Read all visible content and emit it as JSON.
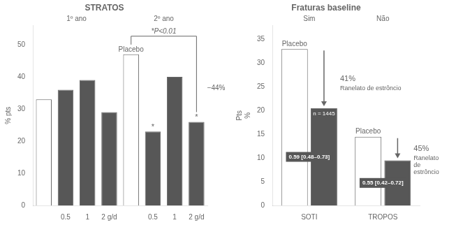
{
  "chart_data": [
    {
      "type": "bar",
      "title": "STRATOS",
      "ylabel": "% pts",
      "categories": [
        null,
        "0.5",
        "1",
        "2 g/d",
        null,
        "0.5",
        "1",
        "2 g/d"
      ],
      "values": [
        33,
        36,
        39,
        29,
        47,
        23,
        40,
        26
      ],
      "colors": [
        "#ffffff",
        "#575757",
        "#575757",
        "#575757",
        "#ffffff",
        "#575757",
        "#575757",
        "#575757"
      ],
      "ylim": [
        0,
        56
      ],
      "yticks": [
        0,
        10,
        20,
        30,
        40,
        50
      ],
      "grid": false,
      "annotations": [
        "1º ano",
        "2º ano",
        "Placebo",
        "*P<0.01",
        "−44%",
        "*",
        "*"
      ]
    },
    {
      "type": "bar",
      "title": "Fraturas baseline",
      "ylabel": "Pts\n%",
      "categories": [
        "SOTI",
        "TROPOS"
      ],
      "series": [
        {
          "name": "Placebo",
          "color": "#ffffff",
          "values": [
            33,
            14.5
          ]
        },
        {
          "name": "Ranelato de estrôncio",
          "color": "#575757",
          "values": [
            20.5,
            9.5
          ]
        }
      ],
      "ylim": [
        0,
        38
      ],
      "yticks": [
        0,
        5,
        10,
        15,
        20,
        25,
        30,
        35
      ],
      "grid": false,
      "annotations": [
        "Sim",
        "Não",
        "41%",
        "45%",
        "n = 1445",
        "0.59 [0.48–0.73]",
        "0.55 [0.42–0.72]",
        "Ranelato\nde\nestrôncio"
      ]
    }
  ]
}
